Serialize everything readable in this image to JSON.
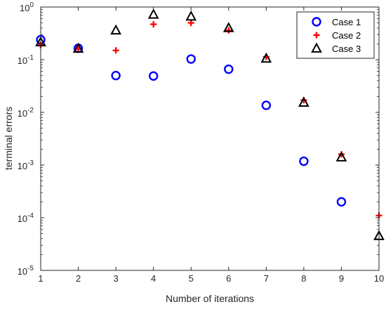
{
  "chart_data": {
    "type": "scatter",
    "title": "",
    "xlabel": "Number of iterations",
    "ylabel": "terminal errors",
    "xlim": [
      1,
      10
    ],
    "ylim": [
      1e-05,
      1
    ],
    "yscale": "log",
    "grid": false,
    "legend_position": "top-right",
    "x_ticks": [
      1,
      2,
      3,
      4,
      5,
      6,
      7,
      8,
      9,
      10
    ],
    "y_ticks": [
      {
        "value": 1e-05,
        "base": "10",
        "exp": "-5"
      },
      {
        "value": 0.0001,
        "base": "10",
        "exp": "-4"
      },
      {
        "value": 0.001,
        "base": "10",
        "exp": "-3"
      },
      {
        "value": 0.01,
        "base": "10",
        "exp": "-2"
      },
      {
        "value": 0.1,
        "base": "10",
        "exp": "-1"
      },
      {
        "value": 1,
        "base": "10",
        "exp": "0"
      }
    ],
    "series": [
      {
        "name": "Case 1",
        "marker": "circle",
        "color": "#0000ff",
        "x": [
          1,
          2,
          3,
          4,
          5,
          6,
          7,
          8,
          9
        ],
        "y": [
          0.24,
          0.165,
          0.05,
          0.049,
          0.103,
          0.066,
          0.0136,
          0.00118,
          0.0002
        ]
      },
      {
        "name": "Case 2",
        "marker": "plus",
        "color": "#ff0000",
        "x": [
          1,
          2,
          3,
          4,
          5,
          6,
          7,
          8,
          9,
          10
        ],
        "y": [
          0.19,
          0.16,
          0.15,
          0.47,
          0.5,
          0.36,
          0.113,
          0.017,
          0.0016,
          0.00011
        ]
      },
      {
        "name": "Case 3",
        "marker": "triangle",
        "color": "#000000",
        "x": [
          1,
          2,
          3,
          4,
          5,
          6,
          7,
          8,
          9,
          10
        ],
        "y": [
          0.215,
          0.162,
          0.36,
          0.72,
          0.66,
          0.4,
          0.105,
          0.0153,
          0.0014,
          4.5e-05
        ]
      }
    ]
  }
}
